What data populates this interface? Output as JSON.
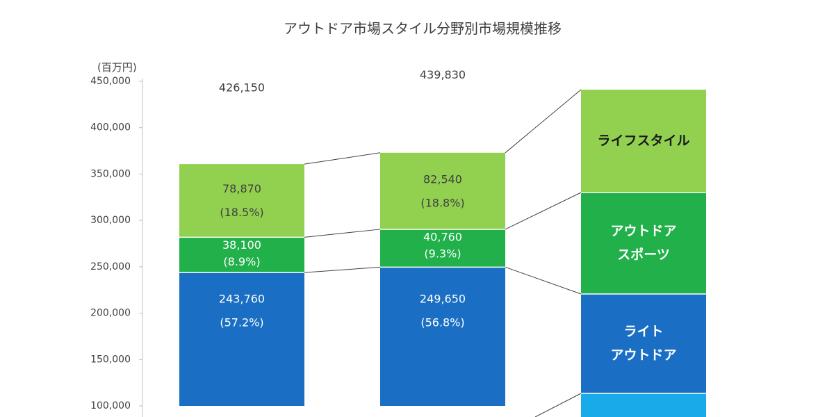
{
  "chart_data": {
    "type": "bar",
    "title": "アウトドア市場スタイル分野別市場規模推移",
    "unit_label": "(百万円)",
    "ylim": [
      100000,
      450000
    ],
    "y_ticks": [
      "100,000",
      "150,000",
      "200,000",
      "250,000",
      "300,000",
      "350,000",
      "400,000",
      "450,000"
    ],
    "stacked": true,
    "bars": [
      {
        "total": 426150,
        "total_label": "426,150",
        "segments": [
          {
            "name": "ライトアウトドア",
            "value": 243760,
            "value_label": "243,760",
            "pct_label": "(57.2%)"
          },
          {
            "name": "アウトドアスポーツ",
            "value": 38100,
            "value_label": "38,100",
            "pct_label": "(8.9%)"
          },
          {
            "name": "ライフスタイル",
            "value": 78870,
            "value_label": "78,870",
            "pct_label": "(18.5%)"
          }
        ]
      },
      {
        "total": 439830,
        "total_label": "439,830",
        "segments": [
          {
            "name": "ライトアウトドア",
            "value": 249650,
            "value_label": "249,650",
            "pct_label": "(56.8%)"
          },
          {
            "name": "アウトドアスポーツ",
            "value": 40760,
            "value_label": "40,760",
            "pct_label": "(9.3%)"
          },
          {
            "name": "ライフスタイル",
            "value": 82540,
            "value_label": "82,540",
            "pct_label": "(18.8%)"
          }
        ]
      }
    ],
    "legend": [
      {
        "label_lines": [
          "ライフスタイル"
        ],
        "color": "#92d050",
        "text_color": "#1a1a1a"
      },
      {
        "label_lines": [
          "アウトドア",
          "スポーツ"
        ],
        "color": "#22b04a",
        "text_color": "#ffffff"
      },
      {
        "label_lines": [
          "ライト",
          "アウトドア"
        ],
        "color": "#1a6fc4",
        "text_color": "#ffffff"
      },
      {
        "label_lines": [
          ""
        ],
        "color": "#19aaea",
        "text_color": "#ffffff"
      }
    ],
    "colors": {
      "ライトアウトドア": "#1a6fc4",
      "アウトドアスポーツ": "#22b04a",
      "ライフスタイル": "#92d050",
      "axis": "#bfbfbf",
      "connector": "#404040"
    }
  }
}
